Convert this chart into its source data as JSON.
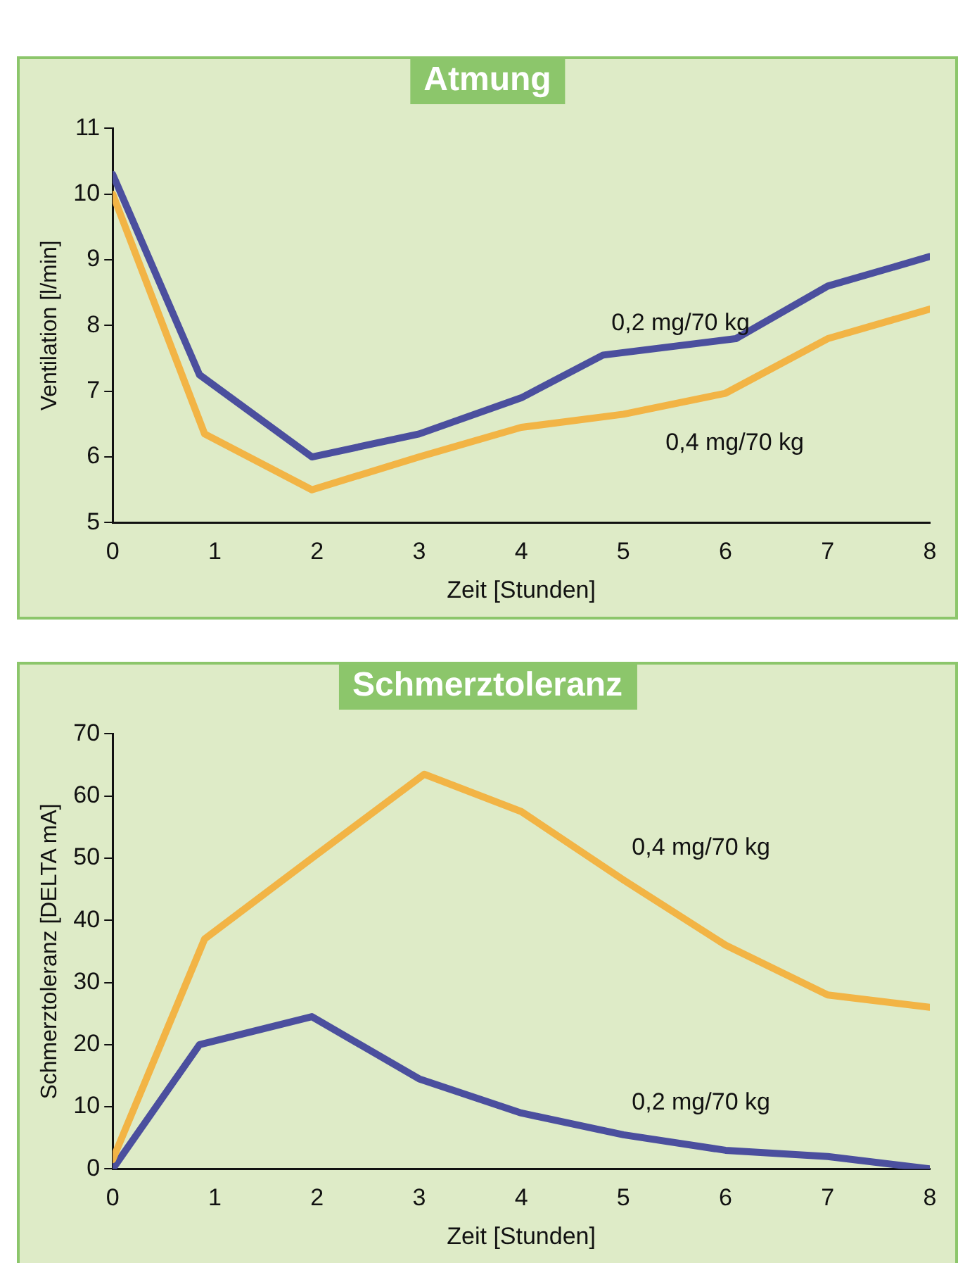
{
  "chart_data": [
    {
      "type": "line",
      "title": "Atmung",
      "xlabel": "Zeit [Stunden]",
      "ylabel": "Ventilation [l/min]",
      "xlim": [
        0,
        8
      ],
      "xticks": [
        0,
        1,
        2,
        3,
        4,
        5,
        6,
        7,
        8
      ],
      "ylim": [
        5,
        11
      ],
      "yticks": [
        5,
        6,
        7,
        8,
        9,
        10,
        11
      ],
      "grid": false,
      "legend": false,
      "marker": "none",
      "series": [
        {
          "name": "0,2 mg/70 kg",
          "color": "#4b4f9e",
          "x": [
            0,
            0.85,
            1.95,
            3,
            4,
            4.8,
            6.1,
            7,
            8
          ],
          "values": [
            10.3,
            7.25,
            6.0,
            6.35,
            6.9,
            7.55,
            7.8,
            8.6,
            9.05
          ]
        },
        {
          "name": "0,4 mg/70 kg",
          "color": "#f2b445",
          "x": [
            0,
            0.9,
            1.95,
            3,
            4,
            5,
            6,
            7,
            8
          ],
          "values": [
            10.0,
            6.35,
            5.5,
            6.0,
            6.45,
            6.65,
            6.97,
            7.8,
            8.25
          ]
        }
      ]
    },
    {
      "type": "line",
      "title": "Schmerztoleranz",
      "xlabel": "Zeit [Stunden]",
      "ylabel": "Schmerztoleranz [DELTA mA]",
      "xlim": [
        0,
        8
      ],
      "xticks": [
        0,
        1,
        2,
        3,
        4,
        5,
        6,
        7,
        8
      ],
      "ylim": [
        0,
        70
      ],
      "yticks": [
        0,
        10,
        20,
        30,
        40,
        50,
        60,
        70
      ],
      "grid": false,
      "legend": false,
      "marker": "none",
      "series": [
        {
          "name": "0,4 mg/70 kg",
          "color": "#f2b445",
          "x": [
            0,
            0.9,
            1.95,
            3.05,
            4,
            5,
            6,
            7,
            8
          ],
          "values": [
            1.5,
            37,
            50,
            63.5,
            57.5,
            46.5,
            36,
            28,
            26
          ]
        },
        {
          "name": "0,2 mg/70 kg",
          "color": "#4b4f9e",
          "x": [
            0,
            0.85,
            1.95,
            3,
            4,
            5,
            6,
            7,
            8
          ],
          "values": [
            0,
            20,
            24.5,
            14.5,
            9,
            5.5,
            3,
            2,
            0
          ]
        }
      ]
    }
  ]
}
